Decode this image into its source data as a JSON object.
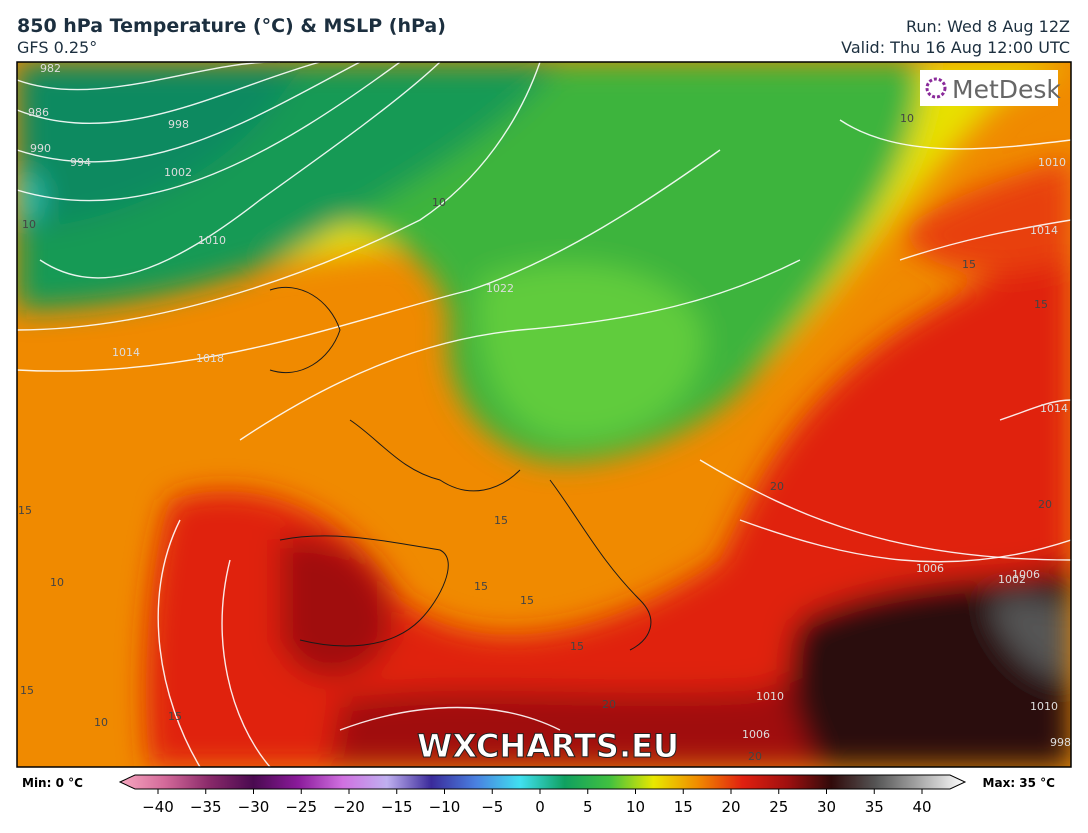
{
  "header": {
    "title": "850 hPa Temperature (°C) & MSLP (hPa)",
    "subtitle": "GFS 0.25°",
    "run": "Run: Wed 8 Aug 12Z",
    "valid": "Valid: Thu 16 Aug 12:00 UTC"
  },
  "map": {
    "logo": "MetDesk",
    "watermark": "WXCHARTS.EU",
    "isobar_labels": [
      "982",
      "986",
      "990",
      "994",
      "998",
      "1002",
      "1010",
      "1014",
      "1018",
      "1022",
      "1010",
      "1014",
      "1014",
      "1006",
      "1002",
      "1010",
      "1006",
      "1006",
      "1010",
      "998"
    ],
    "isotherm_labels": [
      "10",
      "10",
      "10",
      "15",
      "15",
      "15",
      "15",
      "15",
      "20",
      "20",
      "20",
      "15",
      "15",
      "15",
      "15",
      "20",
      "10",
      "10"
    ]
  },
  "colorbar": {
    "min_label": "Min: 0 °C",
    "max_label": "Max: 35 °C",
    "ticks": [
      {
        "value": -40,
        "label": "−40"
      },
      {
        "value": -35,
        "label": "−35"
      },
      {
        "value": -30,
        "label": "−30"
      },
      {
        "value": -25,
        "label": "−25"
      },
      {
        "value": -20,
        "label": "−20"
      },
      {
        "value": -15,
        "label": "−15"
      },
      {
        "value": -10,
        "label": "−10"
      },
      {
        "value": -5,
        "label": "−5"
      },
      0,
      5,
      10,
      15,
      20,
      25,
      30,
      35,
      40
    ],
    "colors": [
      "#f7a8c0",
      "#d46a9a",
      "#8a2a6a",
      "#4a0a50",
      "#8a1a9a",
      "#d070e0",
      "#c0b0f0",
      "#3a2a9a",
      "#4a80e0",
      "#40e0f0",
      "#10a060",
      "#40c040",
      "#e8e800",
      "#f08a00",
      "#e02010",
      "#a01010",
      "#300a0a",
      "#555555",
      "#aaaaaa",
      "#ffffff"
    ]
  }
}
